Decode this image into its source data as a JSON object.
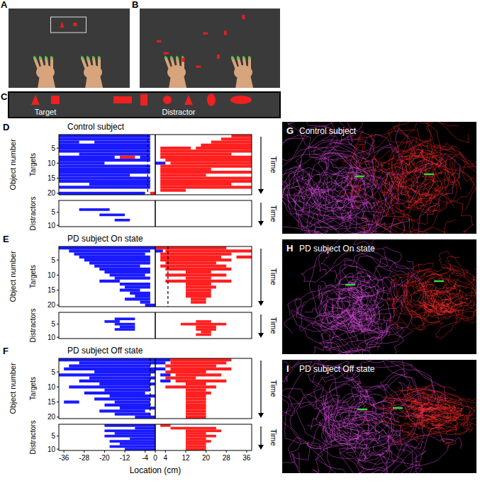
{
  "figure": {
    "photos": [
      {
        "letter": "A"
      },
      {
        "letter": "B"
      }
    ],
    "stimuli": {
      "letter": "C",
      "target_label": "Target",
      "distractor_label": "Distractor"
    },
    "trajectories": [
      {
        "letter": "G",
        "title": "Control subject"
      },
      {
        "letter": "H",
        "title": "PD subject On state"
      },
      {
        "letter": "I",
        "title": "PD subject Off state"
      }
    ]
  },
  "chart_data": [
    {
      "type": "raster",
      "panel": "D",
      "title": "Control subject",
      "ylabel": "Object number",
      "time_label": "Time",
      "xlim": [
        -38,
        38
      ],
      "xticks": [
        -36,
        -28,
        -20,
        -12,
        -4,
        0,
        4,
        12,
        20,
        28,
        36
      ],
      "tick_labels": "y",
      "center_line": 0,
      "dashed_line": -3,
      "targets": {
        "label": "Targets",
        "ylim": [
          0.5,
          20.5
        ],
        "yticks": [
          5,
          10,
          15,
          20
        ],
        "series": [
          {
            "color": "#1a1aff",
            "values": [
              [
                1,
                -38,
                -2
              ],
              [
                2,
                -38,
                -2
              ],
              [
                3,
                -24,
                -2
              ],
              [
                3,
                -38,
                -30
              ],
              [
                4,
                -38,
                -2
              ],
              [
                5,
                -38,
                -2
              ],
              [
                6,
                -38,
                -2
              ],
              [
                7,
                -30,
                -2
              ],
              [
                8,
                -38,
                -16
              ],
              [
                8,
                -6,
                -2
              ],
              [
                9,
                -38,
                -2
              ],
              [
                10,
                -38,
                -20
              ],
              [
                10,
                0,
                4
              ],
              [
                11,
                -38,
                -2
              ],
              [
                12,
                -38,
                -2
              ],
              [
                13,
                -38,
                -2
              ],
              [
                14,
                -38,
                -10
              ],
              [
                15,
                -38,
                -2
              ],
              [
                16,
                -38,
                -2
              ],
              [
                17,
                -26,
                -2
              ],
              [
                18,
                -38,
                -2
              ],
              [
                20,
                -38,
                -4
              ]
            ]
          },
          {
            "color": "#ff2020",
            "values": [
              [
                1,
                30,
                38
              ],
              [
                2,
                26,
                38
              ],
              [
                3,
                22,
                38
              ],
              [
                4,
                18,
                38
              ],
              [
                5,
                2,
                14
              ],
              [
                5,
                16,
                38
              ],
              [
                6,
                2,
                38
              ],
              [
                7,
                2,
                30
              ],
              [
                8,
                -14,
                -8
              ],
              [
                8,
                2,
                38
              ],
              [
                9,
                4,
                38
              ],
              [
                10,
                6,
                38
              ],
              [
                11,
                2,
                38
              ],
              [
                12,
                2,
                22
              ],
              [
                13,
                2,
                38
              ],
              [
                14,
                2,
                20
              ],
              [
                15,
                2,
                38
              ],
              [
                16,
                2,
                38
              ],
              [
                17,
                2,
                30
              ],
              [
                18,
                2,
                38
              ],
              [
                19,
                2,
                12
              ],
              [
                20,
                -2,
                0
              ]
            ]
          }
        ]
      },
      "distractors": {
        "label": "Distractors",
        "ylim": [
          0.5,
          10.5
        ],
        "yticks": [
          5,
          10
        ],
        "series": [
          {
            "color": "#1a1aff",
            "values": [
              [
                4,
                -30,
                -18
              ],
              [
                6,
                -22,
                -12
              ],
              [
                8,
                -16,
                -10
              ]
            ]
          },
          {
            "color": "#ff2020",
            "values": []
          }
        ]
      }
    },
    {
      "type": "raster",
      "panel": "E",
      "title": "PD subject On state",
      "ylabel": "Object number",
      "time_label": "Time",
      "xlim": [
        -38,
        38
      ],
      "xticks": [
        -36,
        -28,
        -20,
        -12,
        -4,
        0,
        4,
        12,
        20,
        28,
        36
      ],
      "tick_labels": "y",
      "center_line": 0,
      "dashed_line": 5,
      "targets": {
        "label": "Targets",
        "ylim": [
          0.5,
          20.5
        ],
        "yticks": [
          5,
          10,
          15,
          20
        ],
        "series": [
          {
            "color": "#1a1aff",
            "values": [
              [
                1,
                -38,
                0
              ],
              [
                2,
                -34,
                -2
              ],
              [
                2,
                0,
                3
              ],
              [
                3,
                -32,
                -4
              ],
              [
                4,
                -30,
                -2
              ],
              [
                5,
                -28,
                -2
              ],
              [
                6,
                -26,
                -2
              ],
              [
                7,
                -24,
                -6
              ],
              [
                8,
                -22,
                -2
              ],
              [
                9,
                -20,
                -2
              ],
              [
                10,
                -18,
                -4
              ],
              [
                11,
                -16,
                -2
              ],
              [
                12,
                -22,
                -14
              ],
              [
                13,
                -14,
                -2
              ],
              [
                14,
                -12,
                -2
              ],
              [
                15,
                -14,
                -6
              ],
              [
                16,
                -10,
                -2
              ],
              [
                17,
                -8,
                -2
              ],
              [
                18,
                -12,
                -2
              ],
              [
                19,
                -6,
                -2
              ],
              [
                20,
                -4,
                0
              ]
            ]
          },
          {
            "color": "#ff2020",
            "values": [
              [
                1,
                0,
                28
              ],
              [
                2,
                4,
                38
              ],
              [
                3,
                2,
                30
              ],
              [
                4,
                32,
                38
              ],
              [
                4,
                2,
                26
              ],
              [
                5,
                2,
                30
              ],
              [
                6,
                4,
                24
              ],
              [
                7,
                2,
                28
              ],
              [
                8,
                4,
                30
              ],
              [
                9,
                12,
                22
              ],
              [
                10,
                4,
                28
              ],
              [
                11,
                12,
                22
              ],
              [
                12,
                4,
                30
              ],
              [
                13,
                12,
                22
              ],
              [
                14,
                12,
                24
              ],
              [
                15,
                12,
                22
              ],
              [
                16,
                12,
                22
              ],
              [
                17,
                12,
                22
              ],
              [
                18,
                14,
                20
              ],
              [
                19,
                14,
                20
              ]
            ]
          }
        ]
      },
      "distractors": {
        "label": "Distractors",
        "ylim": [
          0.5,
          10.5
        ],
        "yticks": [
          5,
          10
        ],
        "series": [
          {
            "color": "#1a1aff",
            "values": [
              [
                3,
                -16,
                -8
              ],
              [
                4,
                -20,
                -14
              ],
              [
                5,
                -16,
                -8
              ],
              [
                6,
                -14,
                -8
              ],
              [
                7,
                -16,
                -8
              ]
            ]
          },
          {
            "color": "#ff2020",
            "values": [
              [
                4,
                16,
                22
              ],
              [
                5,
                10,
                28
              ],
              [
                6,
                16,
                24
              ],
              [
                7,
                16,
                24
              ],
              [
                8,
                18,
                22
              ],
              [
                9,
                16,
                22
              ]
            ]
          }
        ]
      }
    },
    {
      "type": "raster",
      "panel": "F",
      "title": "PD subject Off state",
      "ylabel": "Object number",
      "time_label": "Time",
      "xlabel": "Location (cm)",
      "xlim": [
        -38,
        38
      ],
      "xticks": [
        -36,
        -28,
        -20,
        -12,
        -4,
        0,
        4,
        12,
        20,
        28,
        36
      ],
      "tick_labels": true,
      "center_line": 0,
      "dashed_line": -2,
      "targets": {
        "label": "Targets",
        "ylim": [
          0.5,
          20.5
        ],
        "yticks": [
          5,
          10,
          15,
          20
        ],
        "series": [
          {
            "color": "#1a1aff",
            "values": [
              [
                1,
                -38,
                0
              ],
              [
                1,
                0,
                6
              ],
              [
                2,
                -30,
                0
              ],
              [
                2,
                0,
                4
              ],
              [
                3,
                -34,
                -2
              ],
              [
                4,
                -36,
                0
              ],
              [
                4,
                0,
                4
              ],
              [
                5,
                -24,
                0
              ],
              [
                6,
                -38,
                -2
              ],
              [
                6,
                2,
                6
              ],
              [
                7,
                -26,
                0
              ],
              [
                8,
                -30,
                -2
              ],
              [
                8,
                2,
                6
              ],
              [
                9,
                -22,
                0
              ],
              [
                10,
                -34,
                -2
              ],
              [
                11,
                -20,
                -2
              ],
              [
                12,
                -28,
                -4
              ],
              [
                13,
                -18,
                0
              ],
              [
                14,
                -24,
                -2
              ],
              [
                15,
                -36,
                -30
              ],
              [
                15,
                -16,
                -2
              ],
              [
                16,
                -20,
                -2
              ],
              [
                17,
                -14,
                0
              ],
              [
                18,
                -22,
                -4
              ],
              [
                19,
                -16,
                -2
              ],
              [
                20,
                -8,
                0
              ]
            ]
          },
          {
            "color": "#ff2020",
            "values": [
              [
                1,
                6,
                30
              ],
              [
                2,
                6,
                28
              ],
              [
                3,
                4,
                24
              ],
              [
                4,
                6,
                30
              ],
              [
                5,
                4,
                20
              ],
              [
                6,
                8,
                26
              ],
              [
                7,
                4,
                16
              ],
              [
                8,
                8,
                28
              ],
              [
                9,
                12,
                20
              ],
              [
                10,
                4,
                24
              ],
              [
                11,
                12,
                20
              ],
              [
                12,
                12,
                22
              ],
              [
                13,
                12,
                20
              ],
              [
                14,
                12,
                20
              ],
              [
                15,
                12,
                20
              ],
              [
                16,
                12,
                20
              ],
              [
                17,
                12,
                20
              ],
              [
                18,
                12,
                20
              ],
              [
                19,
                12,
                20
              ],
              [
                20,
                12,
                20
              ]
            ]
          }
        ]
      },
      "distractors": {
        "label": "Distractors",
        "ylim": [
          0.5,
          10.5
        ],
        "yticks": [
          5,
          10
        ],
        "series": [
          {
            "color": "#1a1aff",
            "values": [
              [
                1,
                -20,
                0
              ],
              [
                2,
                -8,
                0
              ],
              [
                3,
                -20,
                0
              ],
              [
                4,
                -16,
                0
              ],
              [
                5,
                -20,
                0
              ],
              [
                6,
                -10,
                0
              ],
              [
                7,
                -18,
                0
              ],
              [
                8,
                -14,
                0
              ],
              [
                9,
                -18,
                0
              ],
              [
                10,
                -12,
                0
              ]
            ]
          },
          {
            "color": "#ff2020",
            "values": [
              [
                1,
                2,
                6
              ],
              [
                2,
                6,
                24
              ],
              [
                3,
                12,
                26
              ],
              [
                4,
                12,
                20
              ],
              [
                5,
                12,
                24
              ],
              [
                6,
                12,
                20
              ],
              [
                7,
                12,
                22
              ],
              [
                8,
                12,
                20
              ],
              [
                9,
                12,
                20
              ],
              [
                10,
                12,
                20
              ]
            ]
          }
        ]
      }
    }
  ]
}
